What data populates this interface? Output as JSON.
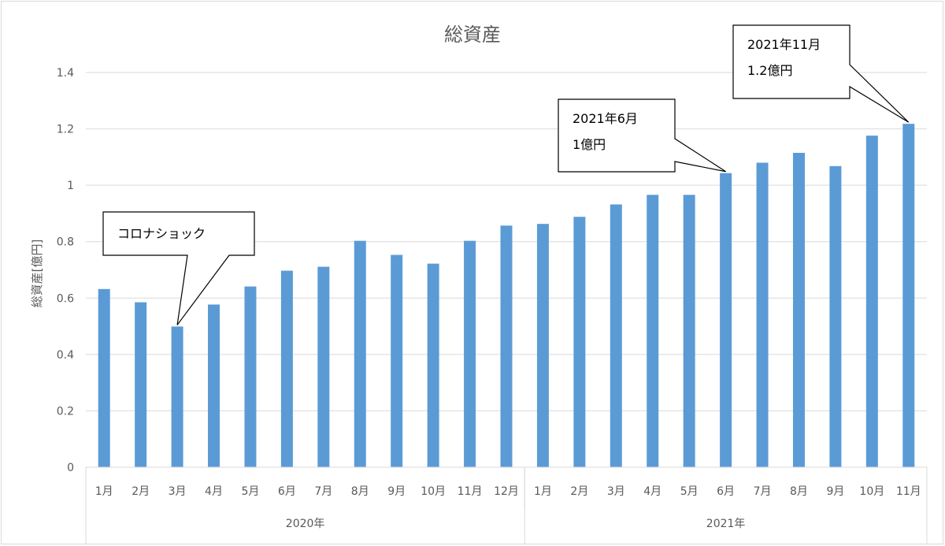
{
  "chart_data": {
    "type": "bar",
    "title": "総資産",
    "ylabel": "総資産[億円]",
    "xlabel": "",
    "ylim": [
      0,
      1.4
    ],
    "yticks": [
      "0",
      "0.2",
      "0.4",
      "0.6",
      "0.8",
      "1",
      "1.2",
      "1.4"
    ],
    "grid": true,
    "bar_color": "#5b9bd5",
    "groups": [
      {
        "label": "2020年",
        "count": 12
      },
      {
        "label": "2021年",
        "count": 11
      }
    ],
    "categories": [
      "1月",
      "2月",
      "3月",
      "4月",
      "5月",
      "6月",
      "7月",
      "8月",
      "9月",
      "10月",
      "11月",
      "12月",
      "1月",
      "2月",
      "3月",
      "4月",
      "5月",
      "6月",
      "7月",
      "8月",
      "9月",
      "10月",
      "11月"
    ],
    "values": [
      0.632,
      0.585,
      0.499,
      0.577,
      0.641,
      0.697,
      0.711,
      0.803,
      0.753,
      0.722,
      0.803,
      0.857,
      0.863,
      0.888,
      0.932,
      0.966,
      0.966,
      1.043,
      1.08,
      1.115,
      1.068,
      1.176,
      1.218
    ],
    "annotations": [
      {
        "lines": [
          "コロナショック"
        ],
        "target_index": 2
      },
      {
        "lines": [
          "2021年6月",
          "1億円"
        ],
        "target_index": 17
      },
      {
        "lines": [
          "2021年11月",
          "1.2億円"
        ],
        "target_index": 22
      }
    ]
  }
}
